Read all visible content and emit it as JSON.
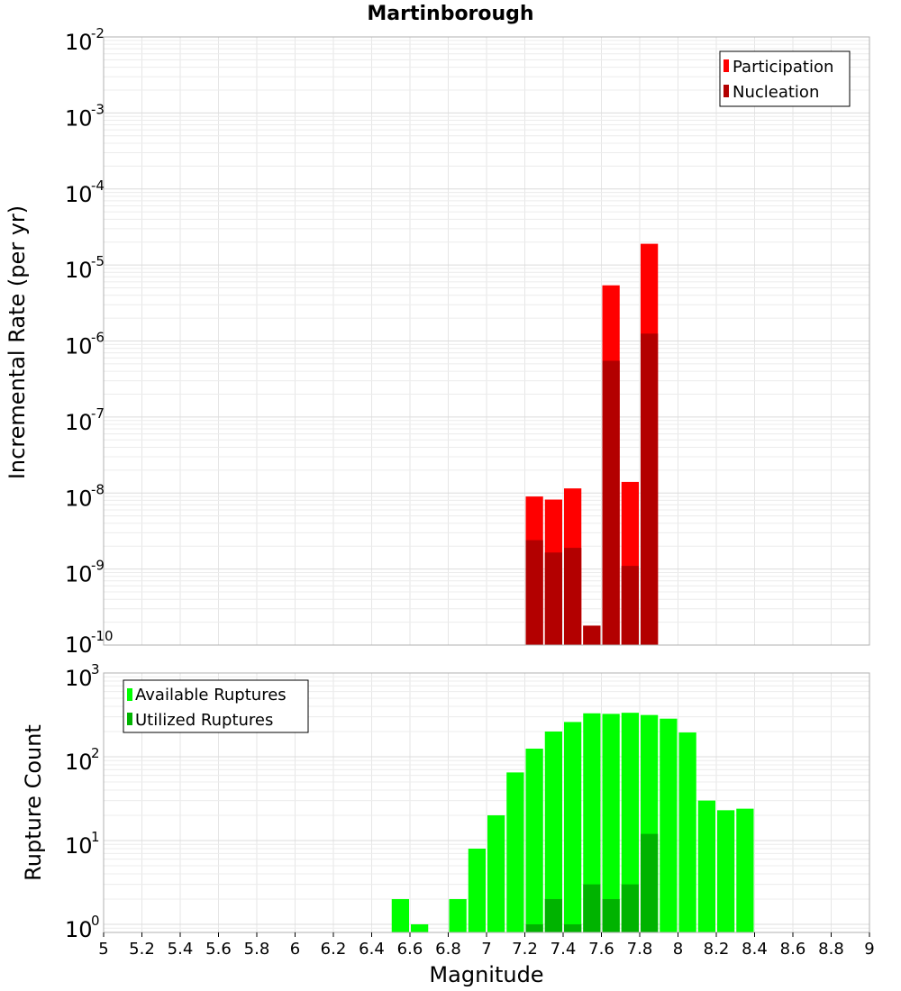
{
  "chart_data": [
    {
      "type": "bar",
      "title": "Martinborough",
      "xlabel": "",
      "ylabel": "Incremental Rate (per yr)",
      "yscale": "log",
      "xlim": [
        5,
        9
      ],
      "ylim": [
        1e-10,
        0.01
      ],
      "ytick_exponents": [
        -2,
        -3,
        -4,
        -5,
        -6,
        -7,
        -8,
        -9,
        -10
      ],
      "grid": true,
      "legend_position": "top-right",
      "series": [
        {
          "name": "Participation",
          "color": "#ff0000",
          "x": [
            7.25,
            7.35,
            7.45,
            7.55,
            7.65,
            7.75,
            7.85
          ],
          "values": [
            9e-09,
            8.2e-09,
            1.15e-08,
            1.8e-10,
            5.4e-06,
            1.4e-08,
            1.9e-05
          ]
        },
        {
          "name": "Nucleation",
          "color": "#b30000",
          "x": [
            7.25,
            7.35,
            7.45,
            7.55,
            7.65,
            7.75,
            7.85
          ],
          "values": [
            2.4e-09,
            1.65e-09,
            1.9e-09,
            1.8e-10,
            5.5e-07,
            1.1e-09,
            1.25e-06
          ]
        }
      ]
    },
    {
      "type": "bar",
      "title": "",
      "xlabel": "Magnitude",
      "ylabel": "Rupture Count",
      "yscale": "log",
      "xlim": [
        5,
        9
      ],
      "ylim": [
        0.8,
        1000
      ],
      "ytick_exponents": [
        3,
        2,
        1,
        0
      ],
      "grid": true,
      "legend_position": "top-left",
      "x_tick_labels": [
        "5",
        "5.2",
        "5.4",
        "5.6",
        "5.8",
        "6",
        "6.2",
        "6.4",
        "6.6",
        "6.8",
        "7",
        "7.2",
        "7.4",
        "7.6",
        "7.8",
        "8",
        "8.2",
        "8.4",
        "8.6",
        "8.8",
        "9"
      ],
      "series": [
        {
          "name": "Available Ruptures",
          "color": "#00ff00",
          "x": [
            6.55,
            6.65,
            6.85,
            6.95,
            7.05,
            7.15,
            7.25,
            7.35,
            7.45,
            7.55,
            7.65,
            7.75,
            7.85,
            7.95,
            8.05,
            8.15,
            8.25,
            8.35
          ],
          "values": [
            2,
            1,
            2,
            8,
            20,
            65,
            125,
            200,
            260,
            330,
            325,
            335,
            315,
            285,
            195,
            30,
            23,
            24
          ]
        },
        {
          "name": "Utilized Ruptures",
          "color": "#00b300",
          "x": [
            7.25,
            7.35,
            7.45,
            7.55,
            7.65,
            7.75,
            7.85
          ],
          "values": [
            1,
            2,
            1,
            3,
            2,
            3,
            12
          ]
        }
      ]
    }
  ]
}
